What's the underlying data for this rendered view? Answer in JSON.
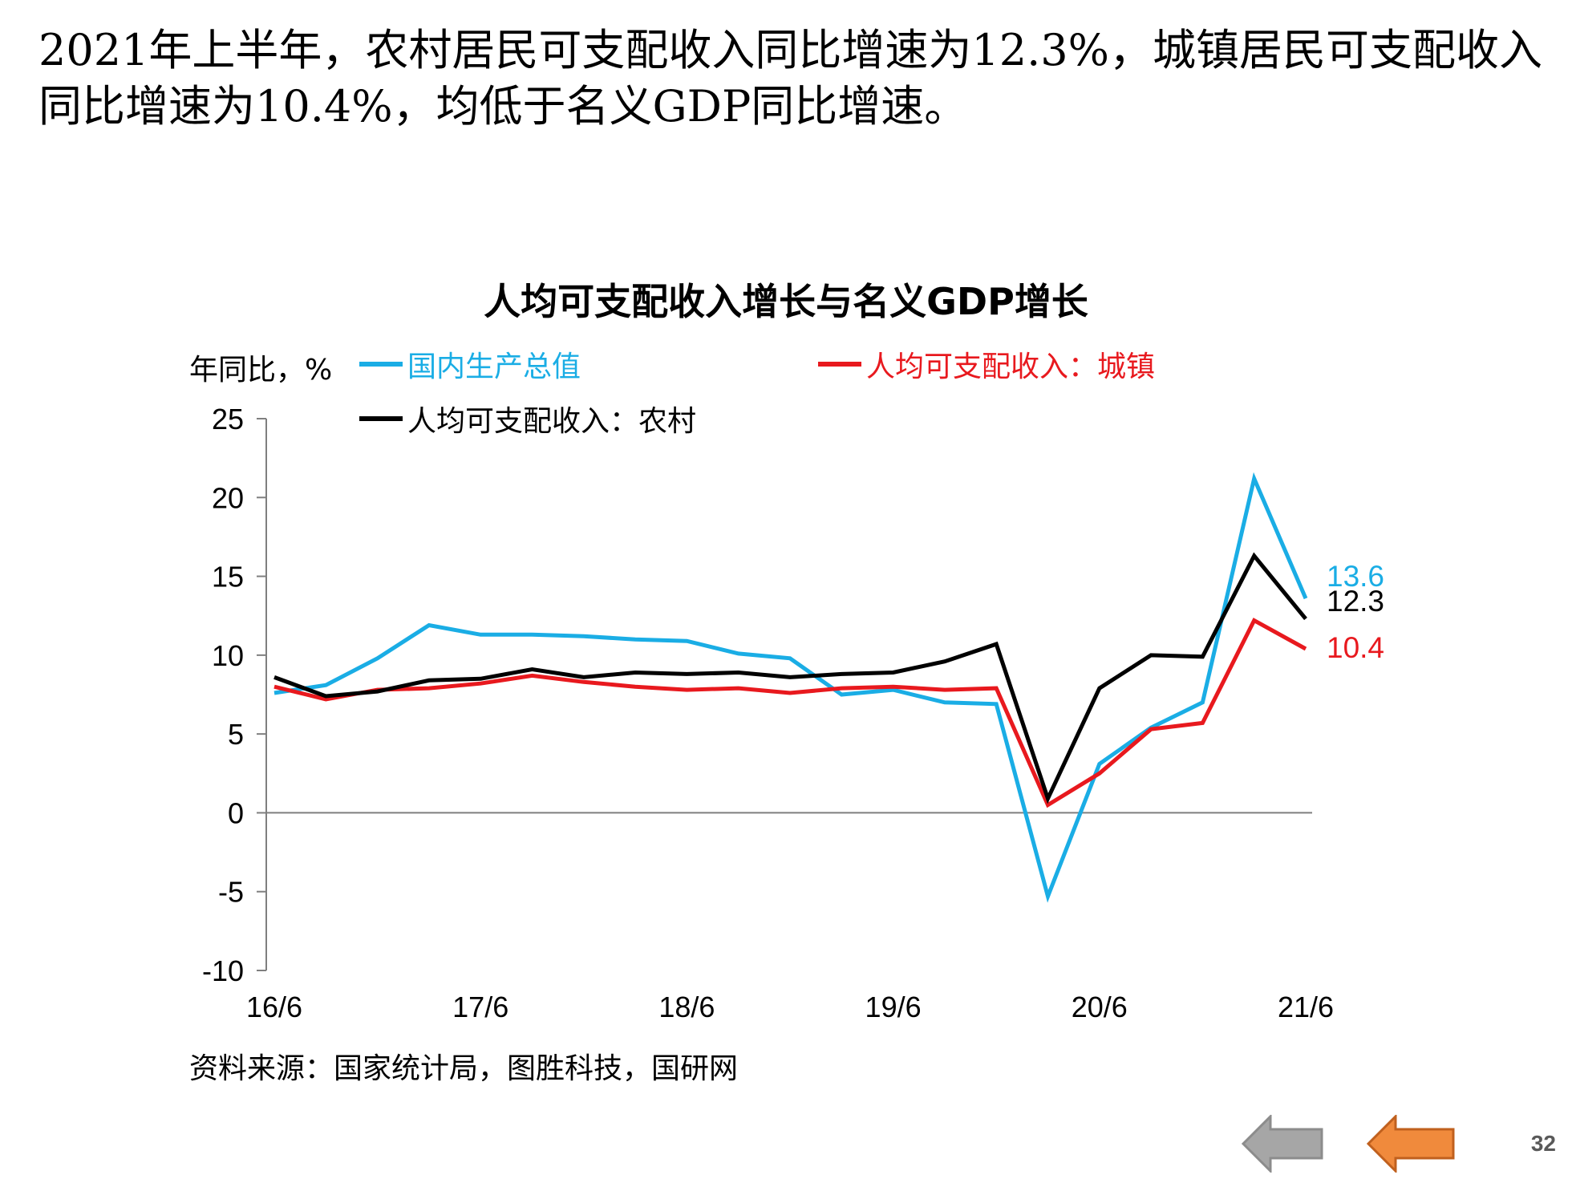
{
  "headline": "2021年上半年，农村居民可支配收入同比增速为12.3%，城镇居民可支配收入同比增速为10.4%，均低于名义GDP同比增速。",
  "chart_data": {
    "type": "line",
    "title": "人均可支配收入增长与名义GDP增长",
    "ylabel": "年同比，%",
    "xlabel": "",
    "ylim": [
      -10,
      25
    ],
    "yticks": [
      25,
      20,
      15,
      10,
      5,
      0,
      -5,
      -10
    ],
    "x_tick_labels": [
      "16/6",
      "17/6",
      "18/6",
      "19/6",
      "20/6",
      "21/6"
    ],
    "x": [
      "16/6",
      "16/9",
      "16/12",
      "17/3",
      "17/6",
      "17/9",
      "17/12",
      "18/3",
      "18/6",
      "18/9",
      "18/12",
      "19/3",
      "19/6",
      "19/9",
      "19/12",
      "20/3",
      "20/6",
      "20/9",
      "20/12",
      "21/3",
      "21/6"
    ],
    "series": [
      {
        "name": "国内生产总值",
        "color": "#1AADE5",
        "values": [
          7.6,
          8.1,
          9.8,
          11.9,
          11.3,
          11.3,
          11.2,
          11.0,
          10.9,
          10.1,
          9.8,
          7.5,
          7.8,
          7.0,
          6.9,
          -5.3,
          3.1,
          5.4,
          7.0,
          21.2,
          13.6
        ]
      },
      {
        "name": "人均可支配收入：城镇",
        "color": "#E8191E",
        "values": [
          8.0,
          7.2,
          7.8,
          7.9,
          8.2,
          8.7,
          8.3,
          8.0,
          7.8,
          7.9,
          7.6,
          7.9,
          8.0,
          7.8,
          7.9,
          0.5,
          2.5,
          5.3,
          5.7,
          12.2,
          10.4
        ]
      },
      {
        "name": "人均可支配收入：农村",
        "color": "#000000",
        "values": [
          8.6,
          7.4,
          7.7,
          8.4,
          8.5,
          9.1,
          8.6,
          8.9,
          8.8,
          8.9,
          8.6,
          8.8,
          8.9,
          9.6,
          10.7,
          0.9,
          7.9,
          10.0,
          9.9,
          16.3,
          12.3
        ]
      }
    ],
    "end_labels": [
      "13.6",
      "12.3",
      "10.4"
    ],
    "legend_position": "top",
    "grid": false
  },
  "source_note": "资料来源：国家统计局，图胜科技，国研网",
  "page_number": "32",
  "nav": {
    "prev_icon": "left-arrow-icon",
    "next_icon": "left-arrow-icon"
  },
  "colors": {
    "gdp": "#1AADE5",
    "urban": "#E8191E",
    "rural": "#000000",
    "axis": "#7F7F7F",
    "nav_prev": "#A6A6A6",
    "nav_next": "#F08A3C"
  }
}
